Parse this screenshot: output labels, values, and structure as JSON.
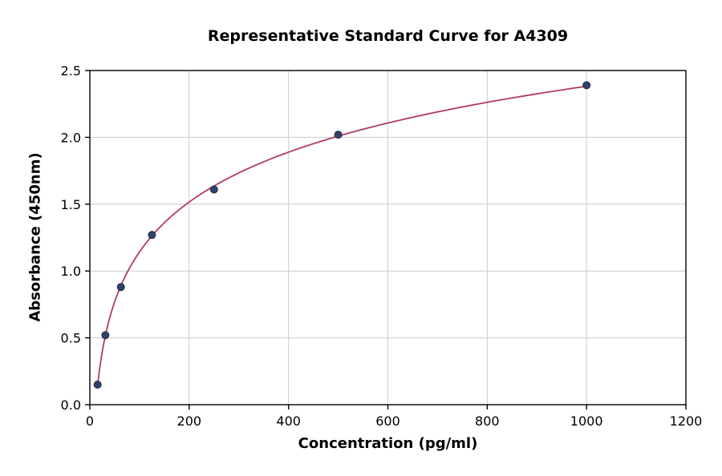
{
  "chart_data": {
    "type": "scatter",
    "title": "Representative Standard Curve for A4309",
    "xlabel": "Concentration (pg/ml)",
    "ylabel": "Absorbance (450nm)",
    "xlim": [
      0,
      1200
    ],
    "ylim": [
      0,
      2.5
    ],
    "x_ticks": [
      0,
      200,
      400,
      600,
      800,
      1000,
      1200
    ],
    "x_tick_labels": [
      "0",
      "200",
      "400",
      "600",
      "800",
      "1000",
      "1200"
    ],
    "y_ticks": [
      0,
      0.5,
      1.0,
      1.5,
      2.0,
      2.5
    ],
    "y_tick_labels": [
      "0.0",
      "0.5",
      "1.0",
      "1.5",
      "2.0",
      "2.5"
    ],
    "grid": true,
    "fit": "logarithmic",
    "points": [
      {
        "x": 15.6,
        "y": 0.15
      },
      {
        "x": 31.25,
        "y": 0.52
      },
      {
        "x": 62.5,
        "y": 0.88
      },
      {
        "x": 125,
        "y": 1.27
      },
      {
        "x": 250,
        "y": 1.61
      },
      {
        "x": 500,
        "y": 2.02
      },
      {
        "x": 1000,
        "y": 2.39
      }
    ],
    "colors": {
      "curve": "#b23a63",
      "point_fill": "#33406b",
      "point_edge": "#222c49",
      "grid": "#cccccc",
      "spine": "#000000"
    }
  }
}
